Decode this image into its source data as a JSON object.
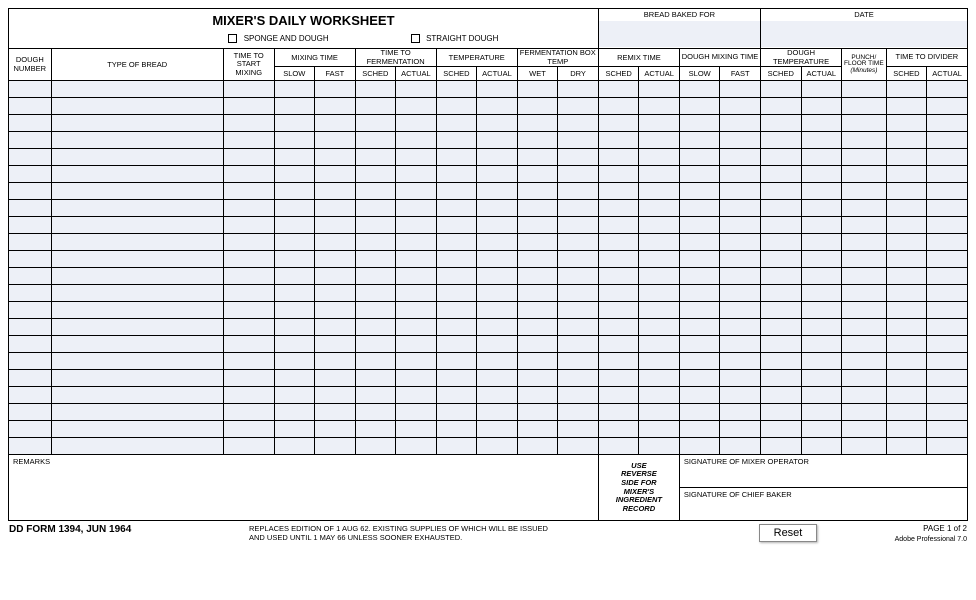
{
  "title": "MIXER'S DAILY WORKSHEET",
  "checkboxes": {
    "sponge": "SPONGE AND DOUGH",
    "straight": "STRAIGHT DOUGH"
  },
  "top_fields": {
    "bread_baked_for": "BREAD BAKED FOR",
    "date": "DATE"
  },
  "cols": {
    "dough_number": "DOUGH NUMBER",
    "type_of_bread": "TYPE OF BREAD",
    "time_to_start_mixing": "TIME TO START MIXING",
    "mixing_time": "MIXING TIME",
    "time_to_fermentation": "TIME TO FERMENTATION",
    "temperature": "TEMPERATURE",
    "fermentation_box_temp": "FERMENTATION BOX TEMP",
    "remix_time": "REMIX TIME",
    "dough_mixing_time": "DOUGH MIXING TIME",
    "dough_temperature": "DOUGH TEMPERATURE",
    "punch_floor_time": "PUNCH/ FLOOR TIME",
    "punch_floor_time_unit": "(Minutes)",
    "time_to_divider": "TIME TO DIVIDER",
    "slow": "SLOW",
    "fast": "FAST",
    "sched": "SCHED",
    "actual": "ACTUAL",
    "wet": "WET",
    "dry": "DRY"
  },
  "bottom": {
    "remarks": "REMARKS",
    "instruction_l1": "USE",
    "instruction_l2": "REVERSE",
    "instruction_l3": "SIDE FOR",
    "instruction_l4": "MIXER'S",
    "instruction_l5": "INGREDIENT",
    "instruction_l6": "RECORD",
    "sig_mixer": "SIGNATURE OF MIXER OPERATOR",
    "sig_baker": "SIGNATURE OF CHIEF BAKER"
  },
  "footer": {
    "form_id": "DD FORM 1394, JUN 1964",
    "replaces_l1": "REPLACES EDITION OF 1 AUG 62. EXISTING SUPPLIES OF WHICH WILL BE ISSUED",
    "replaces_l2": "AND USED UNTIL 1 MAY 66 UNLESS SOONER EXHAUSTED.",
    "reset": "Reset",
    "page": "PAGE 1 of 2",
    "adobe": "Adobe Professional 7.0"
  },
  "row_count": 22,
  "colors": {
    "data_bg": "#edf0f7",
    "border": "#000000"
  }
}
